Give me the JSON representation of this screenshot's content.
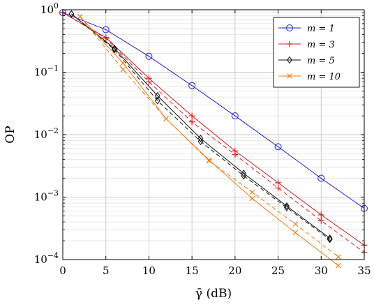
{
  "chart_data": {
    "type": "line",
    "xlabel": "γ̄ (dB)",
    "ylabel": "OP",
    "xlim": [
      0,
      35
    ],
    "ylim": [
      0.0001,
      1
    ],
    "yscale": "log",
    "grid": true,
    "legend_position": "top-right",
    "x_ticks": [
      0,
      5,
      10,
      15,
      20,
      25,
      30,
      35
    ],
    "y_ticks": [
      {
        "value": 1,
        "base": "10",
        "exp": "0"
      },
      {
        "value": 0.1,
        "base": "10",
        "exp": "−1"
      },
      {
        "value": 0.01,
        "base": "10",
        "exp": "−2"
      },
      {
        "value": 0.001,
        "base": "10",
        "exp": "−3"
      },
      {
        "value": 0.0001,
        "base": "10",
        "exp": "−4"
      }
    ],
    "series": [
      {
        "name": "m = 1",
        "color": "#1f1fd6",
        "marker": "circle",
        "x": [
          0,
          5,
          10,
          15,
          20,
          25,
          30,
          35
        ],
        "y": [
          0.9,
          0.48,
          0.18,
          0.061,
          0.02,
          0.0064,
          0.002,
          0.00066
        ],
        "lower_bound": null
      },
      {
        "name": "m = 3",
        "color": "#d61f1f",
        "marker": "plus",
        "x": [
          0,
          5,
          10,
          15,
          20,
          25,
          30,
          35
        ],
        "y": [
          0.9,
          0.36,
          0.08,
          0.02,
          0.0055,
          0.0017,
          0.00052,
          0.00017
        ],
        "lower_bound": [
          0.9,
          0.35,
          0.07,
          0.016,
          0.0048,
          0.0014,
          0.00042,
          0.00013
        ]
      },
      {
        "name": "m = 5",
        "color": "#111111",
        "marker": "diamond",
        "x": [
          1,
          6,
          11,
          16,
          21,
          26,
          31
        ],
        "y": [
          0.86,
          0.24,
          0.042,
          0.0087,
          0.0024,
          0.00072,
          0.00022
        ],
        "lower_bound": [
          0.86,
          0.23,
          0.035,
          0.0078,
          0.0022,
          0.00068,
          0.00021
        ]
      },
      {
        "name": "m = 10",
        "color": "#e87d10",
        "marker": "cross",
        "x": [
          2,
          7,
          12,
          17,
          22,
          27,
          32
        ],
        "y": [
          0.78,
          0.14,
          0.018,
          0.0039,
          0.00095,
          0.00027,
          8e-05
        ],
        "lower_bound": [
          0.78,
          0.11,
          0.018,
          0.0038,
          0.0012,
          0.00037,
          0.00011
        ]
      }
    ]
  }
}
